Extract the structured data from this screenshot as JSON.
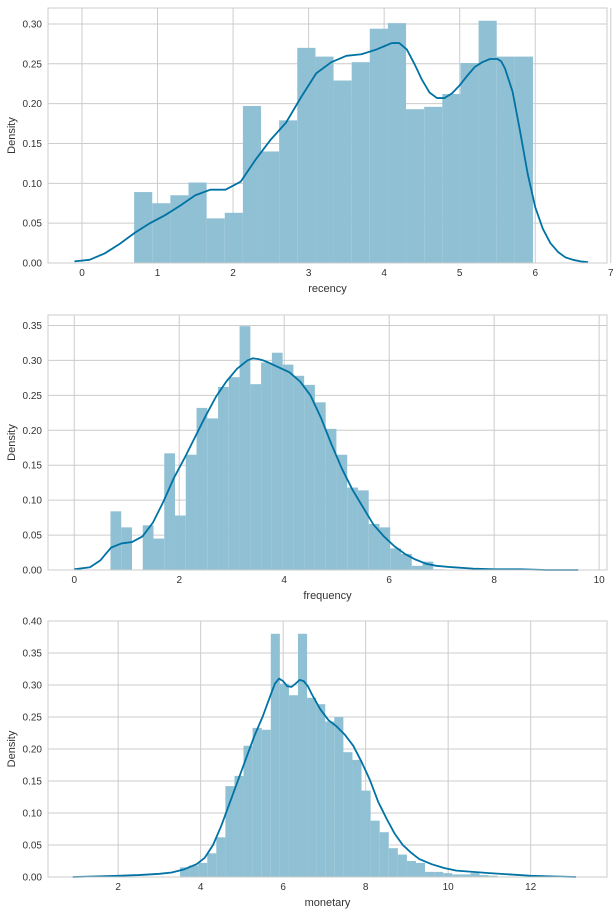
{
  "colors": {
    "bar": "#8fc0d4",
    "kde": "#0072a3",
    "grid": "#cccccc",
    "frame": "#cccccc",
    "background": "#ffffff"
  },
  "chart_data": [
    {
      "type": "bar",
      "title": "",
      "xlabel": "recency",
      "ylabel": "Density",
      "xlim": [
        -0.45,
        6.95
      ],
      "ylim": [
        0,
        0.32
      ],
      "xticks": [
        "0",
        "1",
        "2",
        "3",
        "4",
        "5",
        "6",
        "7"
      ],
      "yticks": [
        "0.00",
        "0.05",
        "0.10",
        "0.15",
        "0.20",
        "0.25",
        "0.30"
      ],
      "grid": true,
      "legend": "none",
      "series": [
        {
          "kind": "histogram",
          "bin_edges": [
            0.69,
            0.93,
            1.17,
            1.41,
            1.65,
            1.89,
            2.13,
            2.37,
            2.61,
            2.85,
            3.09,
            3.33,
            3.57,
            3.81,
            4.05,
            4.29,
            4.53,
            4.77,
            5.01,
            5.25,
            5.49,
            5.73,
            5.97
          ],
          "values": [
            0.089,
            0.075,
            0.085,
            0.101,
            0.056,
            0.063,
            0.197,
            0.14,
            0.179,
            0.27,
            0.259,
            0.229,
            0.252,
            0.294,
            0.301,
            0.193,
            0.196,
            0.212,
            0.251,
            0.304,
            0.259,
            0.259
          ]
        },
        {
          "kind": "kde",
          "x": [
            -0.1,
            0.1,
            0.3,
            0.5,
            0.7,
            0.9,
            1.1,
            1.3,
            1.5,
            1.7,
            1.9,
            2.1,
            2.3,
            2.5,
            2.7,
            2.9,
            3.1,
            3.3,
            3.5,
            3.7,
            3.9,
            4.0,
            4.1,
            4.2,
            4.3,
            4.4,
            4.5,
            4.6,
            4.7,
            4.8,
            4.9,
            5.0,
            5.1,
            5.2,
            5.3,
            5.4,
            5.5,
            5.55,
            5.6,
            5.7,
            5.8,
            5.9,
            6.0,
            6.1,
            6.2,
            6.3,
            6.4,
            6.5,
            6.6,
            6.7
          ],
          "y": [
            0.002,
            0.004,
            0.012,
            0.024,
            0.038,
            0.05,
            0.06,
            0.072,
            0.085,
            0.092,
            0.092,
            0.102,
            0.13,
            0.155,
            0.176,
            0.208,
            0.238,
            0.252,
            0.26,
            0.262,
            0.268,
            0.272,
            0.276,
            0.276,
            0.268,
            0.25,
            0.23,
            0.214,
            0.207,
            0.207,
            0.213,
            0.223,
            0.235,
            0.246,
            0.252,
            0.256,
            0.256,
            0.253,
            0.244,
            0.215,
            0.165,
            0.112,
            0.07,
            0.043,
            0.025,
            0.014,
            0.007,
            0.004,
            0.002,
            0.001
          ]
        }
      ]
    },
    {
      "type": "bar",
      "title": "",
      "xlabel": "frequency",
      "ylabel": "Density",
      "xlim": [
        -0.5,
        10.15
      ],
      "ylim": [
        0,
        0.365
      ],
      "xticks": [
        "0",
        "2",
        "4",
        "6",
        "8",
        "10"
      ],
      "yticks": [
        "0.00",
        "0.05",
        "0.10",
        "0.15",
        "0.20",
        "0.25",
        "0.30",
        "0.35"
      ],
      "grid": true,
      "legend": "none",
      "series": [
        {
          "kind": "histogram",
          "bin_edges": [
            0.69,
            0.895,
            1.1,
            1.305,
            1.51,
            1.715,
            1.92,
            2.125,
            2.33,
            2.535,
            2.74,
            2.945,
            3.15,
            3.355,
            3.56,
            3.765,
            3.97,
            4.175,
            4.38,
            4.585,
            4.79,
            4.995,
            5.2,
            5.405,
            5.61,
            5.815,
            6.02,
            6.225,
            6.43,
            6.635,
            6.84,
            7.045
          ],
          "values": [
            0.084,
            0.061,
            0.0,
            0.064,
            0.045,
            0.167,
            0.078,
            0.165,
            0.232,
            0.217,
            0.262,
            0.276,
            0.349,
            0.266,
            0.297,
            0.311,
            0.294,
            0.278,
            0.265,
            0.24,
            0.202,
            0.165,
            0.118,
            0.114,
            0.066,
            0.061,
            0.031,
            0.023,
            0.006,
            0.012,
            0.001
          ]
        },
        {
          "kind": "kde",
          "x": [
            0.0,
            0.3,
            0.5,
            0.7,
            0.9,
            1.1,
            1.3,
            1.5,
            1.7,
            1.9,
            2.1,
            2.3,
            2.5,
            2.7,
            2.9,
            3.1,
            3.3,
            3.4,
            3.5,
            3.6,
            3.7,
            3.9,
            4.1,
            4.3,
            4.5,
            4.7,
            4.9,
            5.1,
            5.3,
            5.5,
            5.7,
            5.9,
            6.1,
            6.3,
            6.5,
            6.7,
            6.9,
            7.2,
            7.6,
            8.0,
            8.5,
            9.0,
            9.6
          ],
          "y": [
            0.001,
            0.004,
            0.014,
            0.032,
            0.038,
            0.04,
            0.048,
            0.068,
            0.098,
            0.132,
            0.16,
            0.19,
            0.22,
            0.248,
            0.27,
            0.288,
            0.3,
            0.303,
            0.302,
            0.3,
            0.297,
            0.29,
            0.283,
            0.27,
            0.25,
            0.218,
            0.18,
            0.145,
            0.115,
            0.09,
            0.065,
            0.048,
            0.034,
            0.023,
            0.015,
            0.009,
            0.006,
            0.004,
            0.002,
            0.001,
            0.001,
            0.0,
            0.0
          ]
        }
      ]
    },
    {
      "type": "bar",
      "title": "",
      "xlabel": "monetary",
      "ylabel": "Density",
      "xlim": [
        0.3,
        13.85
      ],
      "ylim": [
        0,
        0.4
      ],
      "xticks": [
        "2",
        "4",
        "6",
        "8",
        "10",
        "12"
      ],
      "yticks": [
        "0.00",
        "0.05",
        "0.10",
        "0.15",
        "0.20",
        "0.25",
        "0.30",
        "0.35",
        "0.40"
      ],
      "grid": true,
      "legend": "none",
      "series": [
        {
          "kind": "histogram",
          "bin_edges": [
            3.5,
            3.72,
            3.94,
            4.16,
            4.38,
            4.6,
            4.82,
            5.04,
            5.26,
            5.48,
            5.7,
            5.92,
            6.14,
            6.36,
            6.58,
            6.8,
            7.02,
            7.24,
            7.46,
            7.68,
            7.9,
            8.12,
            8.34,
            8.56,
            8.78,
            9.0,
            9.22,
            9.44,
            9.66,
            9.88,
            10.1,
            10.32,
            10.54,
            10.76,
            10.98,
            11.2
          ],
          "values": [
            0.015,
            0.018,
            0.022,
            0.037,
            0.062,
            0.142,
            0.158,
            0.205,
            0.233,
            0.23,
            0.38,
            0.302,
            0.284,
            0.38,
            0.28,
            0.27,
            0.243,
            0.25,
            0.195,
            0.183,
            0.135,
            0.088,
            0.07,
            0.045,
            0.035,
            0.025,
            0.022,
            0.008,
            0.008,
            0.006,
            0.004,
            0.004,
            0.006,
            0.003,
            0.002
          ]
        },
        {
          "kind": "kde",
          "x": [
            0.9,
            1.5,
            2.0,
            2.5,
            3.0,
            3.3,
            3.6,
            3.9,
            4.1,
            4.3,
            4.5,
            4.7,
            4.9,
            5.1,
            5.3,
            5.5,
            5.7,
            5.8,
            5.9,
            6.0,
            6.1,
            6.2,
            6.3,
            6.4,
            6.5,
            6.6,
            6.7,
            6.9,
            7.1,
            7.3,
            7.5,
            7.7,
            7.9,
            8.1,
            8.3,
            8.5,
            8.7,
            8.9,
            9.1,
            9.3,
            9.6,
            9.9,
            10.2,
            10.6,
            11.0,
            11.5,
            12.0,
            12.5,
            13.1
          ],
          "y": [
            0.0,
            0.001,
            0.002,
            0.003,
            0.005,
            0.007,
            0.012,
            0.02,
            0.03,
            0.05,
            0.08,
            0.115,
            0.15,
            0.185,
            0.22,
            0.25,
            0.285,
            0.302,
            0.31,
            0.306,
            0.298,
            0.297,
            0.302,
            0.308,
            0.306,
            0.298,
            0.285,
            0.262,
            0.245,
            0.235,
            0.222,
            0.205,
            0.18,
            0.152,
            0.118,
            0.092,
            0.068,
            0.05,
            0.038,
            0.028,
            0.02,
            0.014,
            0.01,
            0.008,
            0.006,
            0.004,
            0.002,
            0.001,
            0.0
          ]
        }
      ]
    }
  ]
}
